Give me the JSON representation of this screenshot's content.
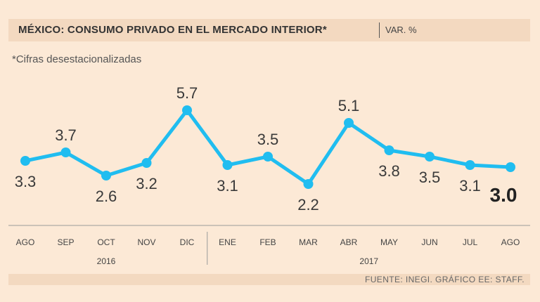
{
  "header": {
    "title": "MÉXICO: CONSUMO PRIVADO EN EL MERCADO INTERIOR*",
    "unit": "VAR. %"
  },
  "note": "*Cifras desestacionalizadas",
  "source": "FUENTE: INEGI. GRÁFICO EE: STAFF.",
  "colors": {
    "line": "#20bdf0",
    "background": "#fce9d6",
    "band": "#f3d9c0"
  },
  "chart_data": {
    "type": "line",
    "title": "MÉXICO: CONSUMO PRIVADO EN EL MERCADO INTERIOR*",
    "ylabel": "VAR. %",
    "ylim": [
      2.0,
      6.0
    ],
    "categories": [
      "AGO",
      "SEP",
      "OCT",
      "NOV",
      "DIC",
      "ENE",
      "FEB",
      "MAR",
      "ABR",
      "MAY",
      "JUN",
      "JUL",
      "AGO"
    ],
    "years": [
      {
        "label": "2016",
        "start": 0,
        "end": 4
      },
      {
        "label": "2017",
        "start": 5,
        "end": 12
      }
    ],
    "series": [
      {
        "name": "Consumo privado",
        "values": [
          3.3,
          3.7,
          2.6,
          3.2,
          5.7,
          3.1,
          3.5,
          2.2,
          5.1,
          3.8,
          3.5,
          3.1,
          3.0
        ],
        "labels": [
          "3.3",
          "3.7",
          "2.6",
          "3.2",
          "5.7",
          "3.1",
          "3.5",
          "2.2",
          "5.1",
          "3.8",
          "3.5",
          "3.1",
          "3.0"
        ]
      }
    ],
    "grid": false
  }
}
